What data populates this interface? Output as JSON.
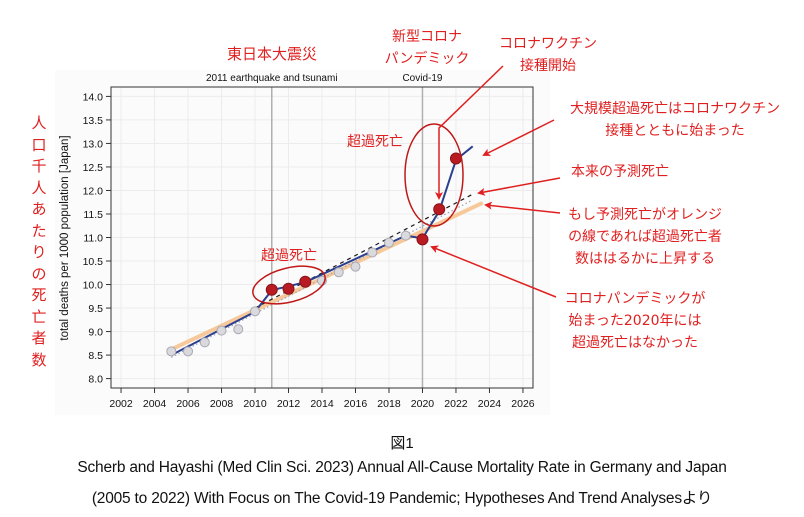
{
  "chart_data": {
    "type": "line",
    "title": "",
    "xlabel": "",
    "ylabel": "total deaths per 1000 population [Japan]",
    "xlim": [
      2001.4,
      2026.6
    ],
    "ylim": [
      7.8,
      14.2
    ],
    "x_ticks": [
      2002,
      2004,
      2006,
      2008,
      2010,
      2012,
      2014,
      2016,
      2018,
      2020,
      2022,
      2024,
      2026
    ],
    "x_tick_labels": [
      "2002",
      "2004",
      "2006",
      "2008",
      "2010",
      "2012",
      "2014",
      "2016",
      "2018",
      "2020",
      "2022",
      "2024",
      "2026"
    ],
    "y_ticks": [
      8.0,
      8.5,
      9.0,
      9.5,
      10.0,
      10.5,
      11.0,
      11.5,
      12.0,
      12.5,
      13.0,
      13.5,
      14.0
    ],
    "y_tick_labels": [
      "8.0",
      "8.5",
      "9.0",
      "9.5",
      "10.0",
      "10.5",
      "11.0",
      "11.5",
      "12.0",
      "12.5",
      "13.0",
      "13.5",
      "14.0"
    ],
    "grid": true,
    "event_lines": [
      {
        "x": 2011,
        "label": "2011 earthquake and tsunami"
      },
      {
        "x": 2020,
        "label": "Covid-19"
      }
    ],
    "series": [
      {
        "name": "observed",
        "color": "#2b3f8f",
        "x": [
          2005,
          2006,
          2007,
          2008,
          2009,
          2010,
          2011,
          2012,
          2013,
          2014,
          2015,
          2016,
          2017,
          2018,
          2019,
          2020,
          2021,
          2022
        ],
        "values": [
          8.58,
          8.58,
          8.77,
          9.02,
          9.05,
          9.43,
          9.89,
          9.91,
          10.06,
          10.08,
          10.26,
          10.38,
          10.68,
          10.89,
          11.04,
          10.96,
          11.6,
          12.68
        ],
        "highlighted_years": [
          2011,
          2012,
          2013,
          2020,
          2021,
          2022
        ]
      },
      {
        "name": "model fit (blue)",
        "color": "#2b3f8f",
        "x": [
          2005,
          2010,
          2011,
          2013,
          2019,
          2020,
          2021,
          2022,
          2023
        ],
        "values": [
          8.5,
          9.42,
          9.88,
          10.05,
          11.04,
          10.98,
          11.56,
          12.65,
          12.94
        ]
      },
      {
        "name": "expected (dashed)",
        "color": "#1a1a1a",
        "style": "dashed",
        "x": [
          2010,
          2023
        ],
        "values": [
          9.5,
          11.92
        ]
      },
      {
        "name": "expected (dotted)",
        "color": "#9aa2b8",
        "style": "dotted",
        "x": [
          2005,
          2023
        ],
        "values": [
          8.45,
          11.8
        ]
      },
      {
        "name": "orange trend",
        "color": "#f7c99a",
        "x": [
          2005,
          2023.5
        ],
        "values": [
          8.62,
          11.72
        ]
      }
    ]
  },
  "annotations": {
    "vertical_label": "人口千人あたりの死亡者数",
    "earthquake": "東日本大震災",
    "covid": "新型コロナ\nパンデミック",
    "vaccine_start": "コロナワクチン\n接種開始",
    "excess_2011": "超過死亡",
    "excess_2021": "超過死亡",
    "large_excess": "大規模超過死亡はコロナワクチン\n接種とともに始まった",
    "expected": "本来の予測死亡",
    "orange": "もし予測死亡がオレンジ\nの線であれば超過死亡者\n数ははるかに上昇する",
    "no_excess_2020": "コロナパンデミックが\n始まった2020年には\n超過死亡はなかった",
    "color": "#e02020"
  },
  "caption": {
    "figure_label": "図1",
    "line1": "Scherb and Hayashi (Med Clin Sci. 2023) Annual All-Cause Mortality Rate in Germany and Japan",
    "line2": "(2005 to 2022) With Focus on The Covid-19 Pandemic; Hypotheses And Trend Analysesより"
  }
}
